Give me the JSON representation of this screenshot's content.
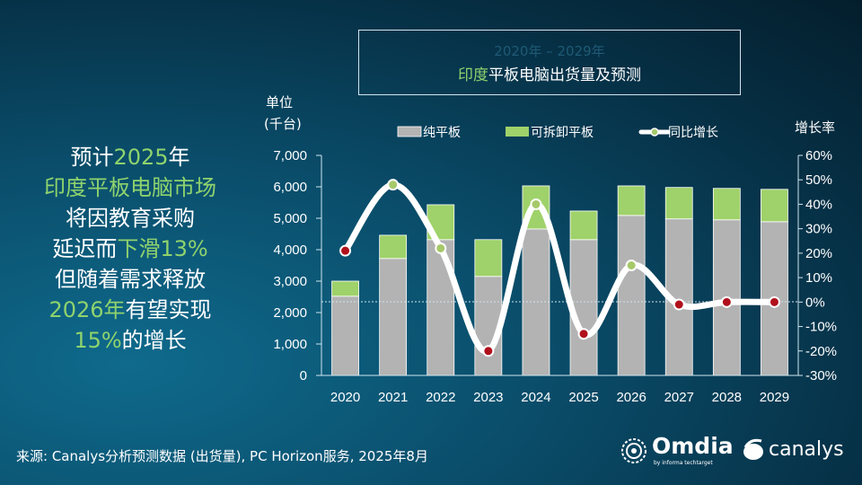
{
  "headline": [
    [
      {
        "t": "预计",
        "g": false
      },
      {
        "t": "2025",
        "g": true
      },
      {
        "t": "年",
        "g": false
      }
    ],
    [
      {
        "t": "印度平板电脑市场",
        "g": true
      }
    ],
    [
      {
        "t": "将因教育采购",
        "g": false
      }
    ],
    [
      {
        "t": "延迟而",
        "g": false
      },
      {
        "t": "下滑13%",
        "g": true
      }
    ],
    [
      {
        "t": "但随着需求释放",
        "g": false
      }
    ],
    [
      {
        "t": "2026年",
        "g": true
      },
      {
        "t": "有望实现",
        "g": false
      }
    ],
    [
      {
        "t": "15%",
        "g": true
      },
      {
        "t": "的增长",
        "g": false
      }
    ]
  ],
  "footer": "来源: Canalys分析预测数据 (出货量), PC Horizon服务, 2025年8月",
  "logos": {
    "omdia": "Omdia",
    "omdia_sub": "by informa techtarget",
    "canalys": "canalys"
  },
  "colors": {
    "pure": "#b3b3b3",
    "detachable": "#9fd26a",
    "line": "#ffffff",
    "point_green": "#a6c96a",
    "point_red": "#b0101c",
    "accent_green": "#8fd36d"
  },
  "chart_data": {
    "type": "bar",
    "stacked": true,
    "title_line1": "2020年 – 2029年",
    "title_line2_green": "印度",
    "title_line2": "平板电脑出货量及预测",
    "ylabel": "单位\n(千台)",
    "ylabel_lines": [
      "单位",
      "(千台)"
    ],
    "y2label": "增长率",
    "categories": [
      "2020",
      "2021",
      "2022",
      "2023",
      "2024",
      "2025",
      "2026",
      "2027",
      "2028",
      "2029"
    ],
    "ylim": [
      0,
      7000
    ],
    "yticks": [
      "0",
      "1,000",
      "2,000",
      "3,000",
      "4,000",
      "5,000",
      "6,000",
      "7,000"
    ],
    "y2lim": [
      -30,
      60
    ],
    "y2ticks": [
      "-30%",
      "-20%",
      "-10%",
      "0%",
      "10%",
      "20%",
      "30%",
      "40%",
      "50%",
      "60%"
    ],
    "legend_position": "top",
    "series": [
      {
        "name": "纯平板",
        "type": "bar",
        "values": [
          2520,
          3720,
          4320,
          3150,
          4660,
          4320,
          5090,
          4980,
          4950,
          4890
        ]
      },
      {
        "name": "可拆卸平板",
        "type": "bar",
        "values": [
          480,
          740,
          1110,
          1170,
          1370,
          910,
          940,
          1000,
          1000,
          1030
        ]
      },
      {
        "name": "同比增长",
        "type": "line",
        "axis": "right",
        "unit": "%",
        "values": [
          21,
          48,
          22,
          -20,
          40,
          -13,
          15,
          -1,
          0,
          0
        ],
        "point_colors": [
          "red",
          "green",
          "green",
          "red",
          "green",
          "red",
          "green",
          "red",
          "red",
          "red"
        ]
      }
    ]
  }
}
